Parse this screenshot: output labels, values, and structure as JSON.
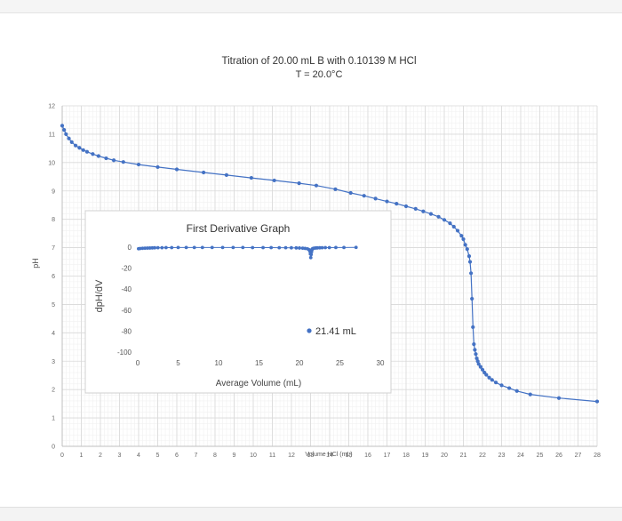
{
  "chart_data": [
    {
      "type": "scatter",
      "title": "Titration of 20.00 mL B with 0.10139 M HCl",
      "subtitle": "T = 20.0°C",
      "xlabel": "Volume HCl (mL)",
      "ylabel": "pH",
      "xlim": [
        0,
        28
      ],
      "ylim": [
        0,
        12
      ],
      "xticks": [
        "0",
        "1",
        "2",
        "3",
        "4",
        "5",
        "6",
        "7",
        "8",
        "9",
        "10",
        "11",
        "12",
        "13",
        "14",
        "15",
        "16",
        "17",
        "18",
        "19",
        "20",
        "21",
        "22",
        "23",
        "24",
        "25",
        "26",
        "27",
        "28"
      ],
      "yticks": [
        "0",
        "1",
        "2",
        "3",
        "4",
        "5",
        "6",
        "7",
        "8",
        "9",
        "10",
        "11",
        "12"
      ],
      "grid": true,
      "marker_color": "#4472c4",
      "series": [
        {
          "x": [
            0,
            0.1,
            0.2,
            0.35,
            0.5,
            0.7,
            0.9,
            1.1,
            1.3,
            1.6,
            1.9,
            2.3,
            2.7,
            3.2,
            4.0,
            5.0,
            6.0,
            7.4,
            8.6,
            9.9,
            11.1,
            12.4,
            13.3,
            14.3,
            15.1,
            15.8,
            16.4,
            17.0,
            17.5,
            18.0,
            18.5,
            18.9,
            19.3,
            19.7,
            20.0,
            20.3,
            20.5,
            20.7,
            20.9,
            21.0,
            21.1,
            21.2,
            21.3,
            21.35,
            21.4,
            21.45,
            21.5,
            21.55,
            21.6,
            21.65,
            21.7,
            21.75,
            21.8,
            21.9,
            22.0,
            22.1,
            22.2,
            22.35,
            22.5,
            22.7,
            23.0,
            23.4,
            23.8,
            24.5,
            26.0,
            28.0
          ],
          "y": [
            11.3,
            11.15,
            11.0,
            10.85,
            10.72,
            10.6,
            10.52,
            10.44,
            10.38,
            10.3,
            10.23,
            10.15,
            10.08,
            10.02,
            9.93,
            9.84,
            9.76,
            9.65,
            9.56,
            9.46,
            9.37,
            9.27,
            9.19,
            9.06,
            8.93,
            8.83,
            8.73,
            8.63,
            8.55,
            8.46,
            8.37,
            8.28,
            8.19,
            8.09,
            7.98,
            7.86,
            7.74,
            7.6,
            7.42,
            7.3,
            7.1,
            6.95,
            6.7,
            6.5,
            6.1,
            5.2,
            4.2,
            3.6,
            3.4,
            3.25,
            3.1,
            3.0,
            2.9,
            2.8,
            2.7,
            2.6,
            2.52,
            2.42,
            2.34,
            2.25,
            2.15,
            2.05,
            1.95,
            1.83,
            1.7,
            1.58
          ]
        }
      ]
    },
    {
      "type": "scatter",
      "title": "First Derivative Graph",
      "xlabel": "Average Volume (mL)",
      "ylabel": "dpH/dV",
      "xlim": [
        0,
        30
      ],
      "ylim": [
        -100,
        0
      ],
      "xticks": [
        "0",
        "5",
        "10",
        "15",
        "20",
        "25",
        "30"
      ],
      "yticks": [
        "0",
        "-20",
        "-40",
        "-60",
        "-80",
        "-100"
      ],
      "annotation": "21.41 mL",
      "series": [
        {
          "x": [
            0.1,
            0.3,
            0.6,
            0.9,
            1.2,
            1.5,
            1.8,
            2.1,
            2.5,
            3.0,
            3.5,
            4.2,
            5.0,
            6.0,
            7.0,
            8.0,
            9.2,
            10.5,
            11.8,
            13.0,
            14.2,
            15.5,
            16.5,
            17.5,
            18.3,
            19.0,
            19.6,
            20.0,
            20.4,
            20.7,
            21.0,
            21.2,
            21.3,
            21.35,
            21.4,
            21.45,
            21.5,
            21.55,
            21.6,
            21.7,
            21.8,
            22.0,
            22.2,
            22.5,
            22.8,
            23.2,
            23.7,
            24.5,
            25.5,
            27.0
          ],
          "y": [
            -1.5,
            -1.3,
            -1.1,
            -1.0,
            -0.9,
            -0.8,
            -0.7,
            -0.6,
            -0.5,
            -0.5,
            -0.4,
            -0.4,
            -0.3,
            -0.3,
            -0.3,
            -0.3,
            -0.3,
            -0.3,
            -0.3,
            -0.3,
            -0.4,
            -0.4,
            -0.4,
            -0.5,
            -0.5,
            -0.6,
            -0.7,
            -0.8,
            -1.0,
            -1.2,
            -1.6,
            -2.5,
            -4.0,
            -6.5,
            -10.0,
            -7.0,
            -4.5,
            -2.5,
            -1.6,
            -1.2,
            -1.0,
            -0.8,
            -0.7,
            -0.6,
            -0.5,
            -0.4,
            -0.4,
            -0.3,
            -0.3,
            -0.2
          ]
        }
      ]
    }
  ]
}
